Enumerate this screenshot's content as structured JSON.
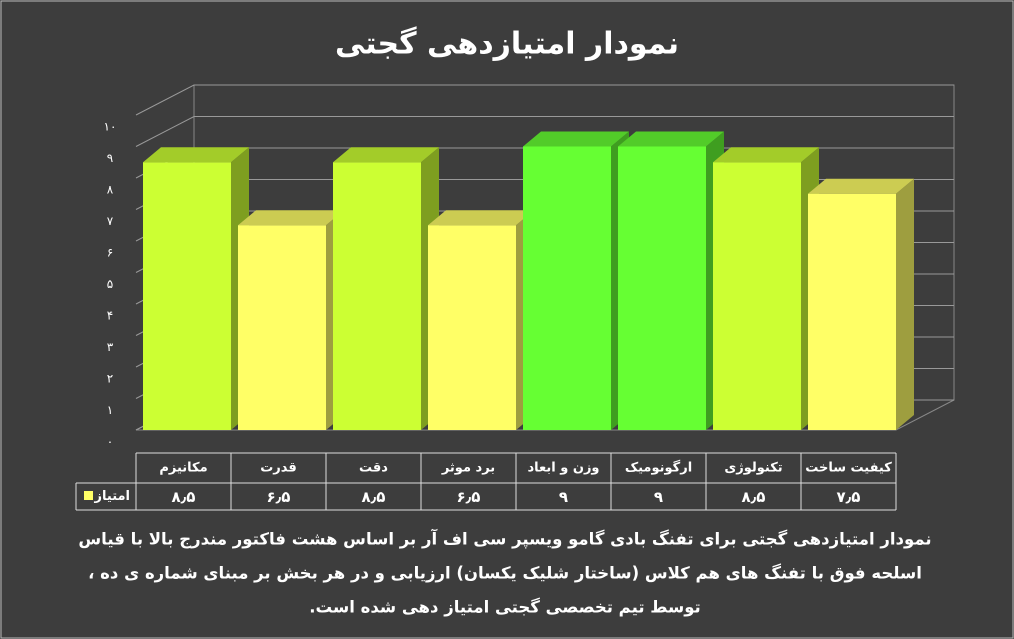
{
  "chart_data": {
    "type": "bar3d",
    "title": "نمودار امتیازدهی گجتی",
    "categories": [
      "مکانیزم",
      "قدرت",
      "دقت",
      "برد موثر",
      "وزن و ابعاد",
      "ارگونومیک",
      "تکنولوژی",
      "کیفیت ساخت"
    ],
    "series": [
      {
        "name": "امتیاز",
        "color": "#ffff66",
        "values": [
          8.5,
          6.5,
          8.5,
          6.5,
          9,
          9,
          8.5,
          7.5
        ],
        "value_labels": [
          "۸٫۵",
          "۶٫۵",
          "۸٫۵",
          "۶٫۵",
          "۹",
          "۹",
          "۸٫۵",
          "۷٫۵"
        ],
        "colors": [
          "#ccff33",
          "#ffff66",
          "#ccff33",
          "#ffff66",
          "#66ff33",
          "#66ff33",
          "#ccff33",
          "#ffff66"
        ]
      }
    ],
    "ylim": [
      0,
      10
    ],
    "yticks": [
      {
        "value": 0,
        "label": "۰"
      },
      {
        "value": 1,
        "label": "۱"
      },
      {
        "value": 2,
        "label": "۲"
      },
      {
        "value": 3,
        "label": "۳"
      },
      {
        "value": 4,
        "label": "۴"
      },
      {
        "value": 5,
        "label": "۵"
      },
      {
        "value": 6,
        "label": "۶"
      },
      {
        "value": 7,
        "label": "۷"
      },
      {
        "value": 8,
        "label": "۸"
      },
      {
        "value": 9,
        "label": "۹"
      },
      {
        "value": 10,
        "label": "۱۰"
      }
    ],
    "grid": true,
    "note_lines": [
      "نمودار امتیازدهی گجتی برای تفنگ بادی گامو ویسپر سی اف آر بر اساس هشت فاکتور مندرج بالا با قیاس",
      "اسلحه فوق با تفنگ های هم کلاس (ساختار شلیک یکسان) ارزیابی و در هر بخش بر مبنای شماره ی ده ،",
      "توسط تیم تخصصی گجتی امتیاز دهی شده است."
    ]
  }
}
